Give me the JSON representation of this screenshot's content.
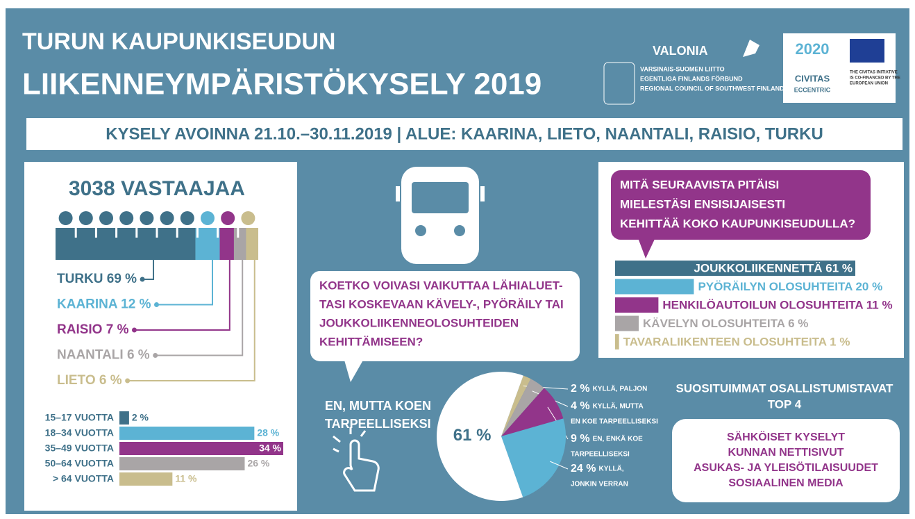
{
  "header": {
    "title_lines": [
      "TURUN KAUPUNKISEUDUN",
      "LIIKENNEYMPÄRISTÖKYSELY 2019"
    ],
    "subtitle": "KYSELY AVOINNA 21.10.–30.11.2019 | ALUE: KAARINA, LIETO, NAANTALI, RAISIO, TURKU"
  },
  "logos": {
    "valonia": "VALONIA",
    "council_lines": [
      "VARSINAIS-SUOMEN LIITTO",
      "EGENTLIGA FINLANDS FÖRBUND",
      "REGIONAL COUNCIL OF SOUTHWEST FINLAND"
    ],
    "civitas_year": "2020",
    "civitas": "CIVITAS",
    "eccentric": "ECCENTRIC",
    "eu_lines": [
      "THE CIVITAS INITIATIVE",
      "IS CO-FINANCED BY THE",
      "EUROPEAN UNION"
    ]
  },
  "respondents": {
    "title": "3038 VASTAAJAA",
    "areas": [
      {
        "label": "TURKU 69 %",
        "value": 69,
        "color": "#3f7189"
      },
      {
        "label": "KAARINA 12 %",
        "value": 12,
        "color": "#5cb3d4"
      },
      {
        "label": "RAISIO 7 %",
        "value": 7,
        "color": "#92358a"
      },
      {
        "label": "NAANTALI 6 %",
        "value": 6,
        "color": "#a9a5a6"
      },
      {
        "label": "LIETO 6 %",
        "value": 6,
        "color": "#c9bd8d"
      }
    ]
  },
  "ages": [
    {
      "group": "15–17 VUOTTA",
      "value": 2,
      "label": "2 %",
      "color": "#3f7189"
    },
    {
      "group": "18–34 VUOTTA",
      "value": 28,
      "label": "28 %",
      "color": "#5cb3d4"
    },
    {
      "group": "35–49 VUOTTA",
      "value": 34,
      "label": "34 %",
      "color": "#92358a"
    },
    {
      "group": "50–64 VUOTTA",
      "value": 26,
      "label": "26 %",
      "color": "#a9a5a6"
    },
    {
      "group": "> 64 VUOTTA",
      "value": 11,
      "label": "11 %",
      "color": "#c9bd8d"
    }
  ],
  "question": {
    "lines": [
      "KOETKO VOIVASI VAIKUTTAA LÄHIALUET-",
      "TASI KOSKEVAAN KÄVELY-, PYÖRÄILY TAI",
      "JOUKKOLIIKENNEOLOSUHTEIDEN",
      "KEHITTÄMISEEN?"
    ],
    "answers": [
      {
        "value": 2,
        "label": "2 %",
        "text": [
          "KYLLÄ, PALJON"
        ],
        "color": "#c9bd8d"
      },
      {
        "value": 4,
        "label": "4 %",
        "text": [
          "KYLLÄ, MUTTA",
          "EN KOE TARPEELLISEKSI"
        ],
        "color": "#a9a5a6"
      },
      {
        "value": 9,
        "label": "9 %",
        "text": [
          "EN, ENKÄ KOE",
          "TARPEELLISEKSI"
        ],
        "color": "#92358a"
      },
      {
        "value": 24,
        "label": "24 %",
        "text": [
          "KYLLÄ,",
          "JONKIN VERRAN"
        ],
        "color": "#5cb3d4"
      },
      {
        "value": 61,
        "label": "61 %",
        "text": [
          "EN, MUTTA KOEN",
          "TARPEELLISEKSI"
        ],
        "color": "#ffffff"
      }
    ]
  },
  "priorities": {
    "question_lines": [
      "MITÄ SEURAAVISTA PITÄISI",
      "MIELESTÄSI ENSISIJAISESTI",
      "KEHITTÄÄ KOKO KAUPUNKISEUDULLA?"
    ],
    "items": [
      {
        "label": "JOUKKOLIIKENNETTÄ 61 %",
        "value": 61,
        "color": "#3f7189"
      },
      {
        "label": "PYÖRÄILYN OLOSUHTEITA 20 %",
        "value": 20,
        "color": "#5cb3d4"
      },
      {
        "label": "HENKILÖAUTOILUN OLOSUHTEITA 11 %",
        "value": 11,
        "color": "#92358a"
      },
      {
        "label": "KÄVELYN OLOSUHTEITA 6 %",
        "value": 6,
        "color": "#a9a5a6"
      },
      {
        "label": "TAVARALIIKENTEEN OLOSUHTEITA 1 %",
        "value": 1,
        "color": "#c9bd8d"
      }
    ]
  },
  "top4": {
    "title_lines": [
      "SUOSITUIMMAT OSALLISTUMISTAVAT",
      "TOP 4"
    ],
    "items": [
      "SÄHKÖISET KYSELYT",
      "KUNNAN NETTISIVUT",
      "ASUKAS- JA YLEISÖTILAISUUDET",
      "SOSIAALINEN MEDIA"
    ]
  }
}
